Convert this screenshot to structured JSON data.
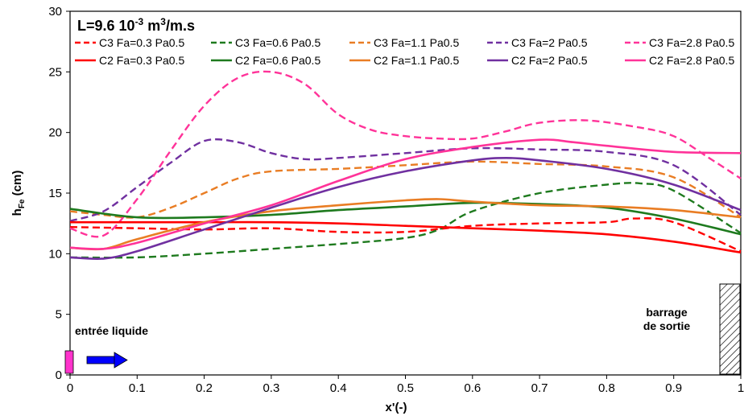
{
  "chart_data": {
    "type": "line",
    "title": "L=9.6 10-3 m3/m.s",
    "title_parts": {
      "main": "L=9.6 10",
      "exp1": "-3",
      "mid": " m",
      "exp2": "3",
      "tail": "/m.s"
    },
    "xlabel": "x'(-)",
    "ylabel": {
      "main": "h",
      "sub": "Fe",
      "tail": " (cm)"
    },
    "xlim": [
      0,
      1
    ],
    "ylim": [
      0,
      30
    ],
    "xticks": [
      "0",
      "0.1",
      "0.2",
      "0.3",
      "0.4",
      "0.5",
      "0.6",
      "0.7",
      "0.8",
      "0.9",
      "1"
    ],
    "yticks": [
      "0",
      "5",
      "10",
      "15",
      "20",
      "25",
      "30"
    ],
    "grid": false,
    "legend_position": "top",
    "annotations": {
      "inlet": "entrée liquide",
      "outlet_line1": "barrage",
      "outlet_line2": "de sortie"
    },
    "colors": {
      "red": "#ff0000",
      "green": "#1e7a1e",
      "orange": "#e97d24",
      "purple": "#7030a0",
      "pink": "#ff3399",
      "inlet": "#ff33cc",
      "arrow": "#0000ff"
    },
    "series": [
      {
        "name": "C3 Fa=0.3 Pa0.5",
        "color": "#ff0000",
        "dash": "dashed",
        "x": [
          0,
          0.1,
          0.2,
          0.3,
          0.4,
          0.5,
          0.6,
          0.7,
          0.8,
          0.84,
          0.9,
          1.0
        ],
        "y": [
          12.2,
          12.1,
          12.0,
          12.1,
          11.8,
          11.8,
          12.3,
          12.5,
          12.6,
          12.9,
          12.6,
          10.2
        ]
      },
      {
        "name": "C3 Fa=0.6 Pa0.5",
        "color": "#1e7a1e",
        "dash": "dashed",
        "x": [
          0,
          0.1,
          0.2,
          0.3,
          0.4,
          0.5,
          0.55,
          0.6,
          0.7,
          0.8,
          0.85,
          0.9,
          1.0
        ],
        "y": [
          9.7,
          9.7,
          10.0,
          10.4,
          10.8,
          11.3,
          12.0,
          13.5,
          15.0,
          15.7,
          15.8,
          15.2,
          11.7
        ]
      },
      {
        "name": "C3 Fa=1.1 Pa0.5",
        "color": "#e97d24",
        "dash": "dashed",
        "x": [
          0,
          0.05,
          0.1,
          0.15,
          0.2,
          0.25,
          0.3,
          0.4,
          0.5,
          0.6,
          0.7,
          0.8,
          0.9,
          1.0
        ],
        "y": [
          13.5,
          13.2,
          13.0,
          13.8,
          15.0,
          16.2,
          16.8,
          17.0,
          17.3,
          17.6,
          17.4,
          17.2,
          16.3,
          13.0
        ]
      },
      {
        "name": "C3 Fa=2 Pa0.5",
        "color": "#7030a0",
        "dash": "dashed",
        "x": [
          0,
          0.05,
          0.1,
          0.15,
          0.2,
          0.25,
          0.3,
          0.35,
          0.4,
          0.5,
          0.6,
          0.7,
          0.8,
          0.9,
          1.0
        ],
        "y": [
          12.7,
          13.5,
          15.5,
          17.5,
          19.3,
          19.2,
          18.3,
          17.8,
          17.9,
          18.3,
          18.7,
          18.6,
          18.4,
          17.3,
          13.2
        ]
      },
      {
        "name": "C3 Fa=2.8 Pa0.5",
        "color": "#ff3399",
        "dash": "dashed",
        "x": [
          0,
          0.05,
          0.1,
          0.15,
          0.2,
          0.25,
          0.3,
          0.35,
          0.4,
          0.45,
          0.5,
          0.55,
          0.6,
          0.65,
          0.7,
          0.77,
          0.85,
          0.9,
          0.95,
          1.0
        ],
        "y": [
          12.1,
          11.5,
          14.5,
          18.5,
          22.2,
          24.5,
          25.0,
          24.0,
          21.5,
          20.2,
          19.7,
          19.5,
          19.5,
          20.1,
          20.8,
          21.0,
          20.4,
          19.7,
          18.0,
          16.2
        ]
      },
      {
        "name": "C2 Fa=0.3 Pa0.5",
        "color": "#ff0000",
        "dash": "solid",
        "x": [
          0,
          0.1,
          0.2,
          0.3,
          0.4,
          0.5,
          0.6,
          0.7,
          0.8,
          0.9,
          1.0
        ],
        "y": [
          12.6,
          12.6,
          12.6,
          12.6,
          12.5,
          12.3,
          12.1,
          11.9,
          11.6,
          11.0,
          10.1
        ]
      },
      {
        "name": "C2 Fa=0.6 Pa0.5",
        "color": "#1e7a1e",
        "dash": "solid",
        "x": [
          0,
          0.1,
          0.2,
          0.3,
          0.4,
          0.5,
          0.6,
          0.7,
          0.8,
          0.9,
          1.0
        ],
        "y": [
          13.7,
          13.0,
          13.0,
          13.2,
          13.6,
          13.9,
          14.2,
          14.1,
          13.8,
          12.9,
          11.6
        ]
      },
      {
        "name": "C2 Fa=1.1 Pa0.5",
        "color": "#e97d24",
        "dash": "solid",
        "x": [
          0,
          0.05,
          0.1,
          0.2,
          0.3,
          0.4,
          0.5,
          0.55,
          0.6,
          0.7,
          0.8,
          0.9,
          1.0
        ],
        "y": [
          10.5,
          10.4,
          11.2,
          12.6,
          13.5,
          14.0,
          14.4,
          14.5,
          14.3,
          14.0,
          13.9,
          13.6,
          13.0
        ]
      },
      {
        "name": "C2 Fa=2 Pa0.5",
        "color": "#7030a0",
        "dash": "solid",
        "x": [
          0,
          0.05,
          0.1,
          0.2,
          0.3,
          0.4,
          0.5,
          0.6,
          0.65,
          0.7,
          0.8,
          0.9,
          1.0
        ],
        "y": [
          9.7,
          9.6,
          10.2,
          12.0,
          13.8,
          15.5,
          16.8,
          17.7,
          17.9,
          17.7,
          17.0,
          15.7,
          13.6
        ]
      },
      {
        "name": "C2 Fa=2.8 Pa0.5",
        "color": "#ff3399",
        "dash": "solid",
        "x": [
          0,
          0.05,
          0.1,
          0.2,
          0.3,
          0.4,
          0.5,
          0.6,
          0.7,
          0.75,
          0.8,
          0.9,
          1.0
        ],
        "y": [
          10.5,
          10.4,
          10.9,
          12.5,
          14.0,
          16.0,
          17.8,
          18.8,
          19.4,
          19.2,
          18.9,
          18.4,
          18.3
        ]
      }
    ]
  }
}
